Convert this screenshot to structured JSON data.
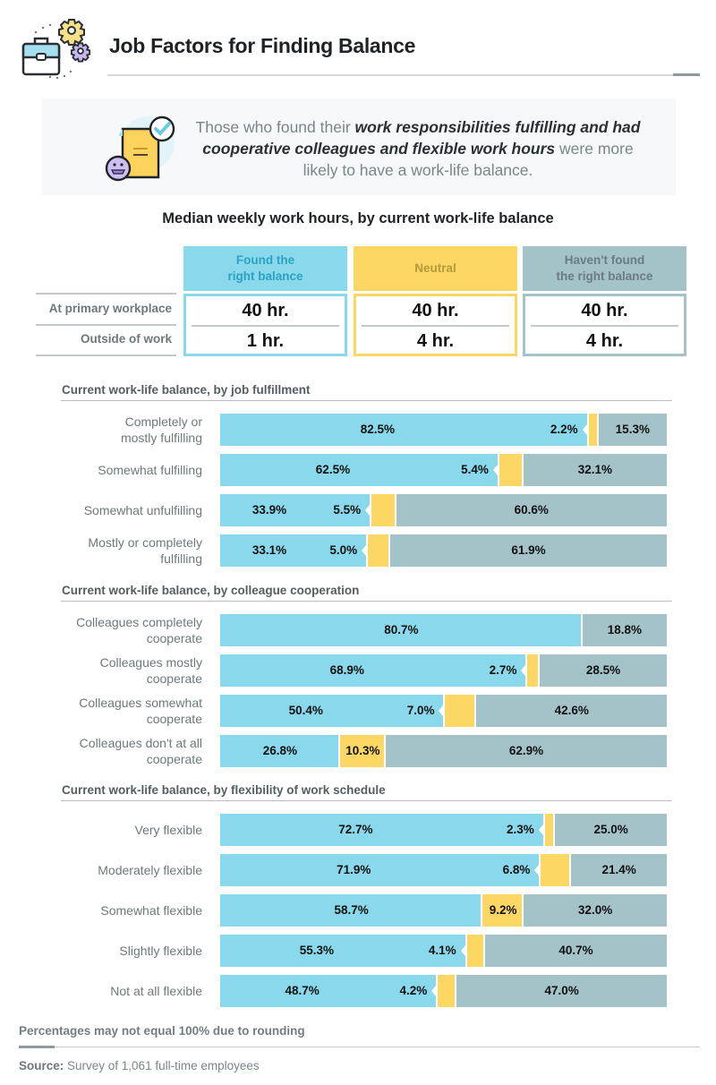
{
  "header": {
    "title": "Job Factors for Finding Balance",
    "icon": "briefcase-gears-icon"
  },
  "callout": {
    "icon": "document-check-face-icon",
    "text_pre": "Those who found their ",
    "text_bold": "work responsibilities fulfilling and had cooperative colleagues and flexible work hours",
    "text_post": " were more likely to have a work-life balance."
  },
  "colors": {
    "found": "#8ad8eb",
    "neutral": "#fcd763",
    "not_found": "#a3c3c9",
    "found_head_text": "#2ba3c2",
    "neutral_head_text": "#b49a3c",
    "not_found_head_text": "#6a7c80"
  },
  "hours_table": {
    "title": "Median weekly work hours, by current work-life balance",
    "columns": [
      {
        "label": "Found the right balance",
        "line1": "Found the",
        "line2": "right balance"
      },
      {
        "label": "Neutral",
        "line1": "Neutral",
        "line2": ""
      },
      {
        "label": "Haven't found the right balance",
        "line1": "Haven't found",
        "line2": "the right balance"
      }
    ],
    "rows": [
      {
        "label": "At primary workplace",
        "values": [
          "40 hr.",
          "40 hr.",
          "40 hr."
        ]
      },
      {
        "label": "Outside of work",
        "values": [
          "1 hr.",
          "4 hr.",
          "4 hr."
        ]
      }
    ]
  },
  "chart_data": {
    "type": "bar",
    "orientation": "horizontal",
    "stacked": true,
    "unit": "%",
    "series_names": [
      "Found the right balance",
      "Neutral",
      "Haven't found the right balance"
    ],
    "xlim": [
      0,
      100
    ],
    "legend": "table-header-top",
    "note": "Percentages may not equal 100% due to rounding",
    "groups": [
      {
        "title": "Current work-life balance, by job fulfillment",
        "rows": [
          {
            "label": [
              "Completely or",
              "mostly fulfilling"
            ],
            "values": [
              82.5,
              2.2,
              15.3
            ],
            "labels": [
              "82.5%",
              "2.2%",
              "15.3%"
            ]
          },
          {
            "label": [
              "Somewhat fulfilling"
            ],
            "values": [
              62.5,
              5.4,
              32.1
            ],
            "labels": [
              "62.5%",
              "5.4%",
              "32.1%"
            ]
          },
          {
            "label": [
              "Somewhat unfulfilling"
            ],
            "values": [
              33.9,
              5.5,
              60.6
            ],
            "labels": [
              "33.9%",
              "5.5%",
              "60.6%"
            ]
          },
          {
            "label": [
              "Mostly or completely",
              "fulfilling"
            ],
            "values": [
              33.1,
              5.0,
              61.9
            ],
            "labels": [
              "33.1%",
              "5.0%",
              "61.9%"
            ]
          }
        ]
      },
      {
        "title": "Current work-life balance, by colleague cooperation",
        "rows": [
          {
            "label": [
              "Colleagues completely",
              "cooperate"
            ],
            "values": [
              80.7,
              0,
              18.8
            ],
            "labels": [
              "80.7%",
              "",
              "18.8%"
            ]
          },
          {
            "label": [
              "Colleagues mostly",
              "cooperate"
            ],
            "values": [
              68.9,
              2.7,
              28.5
            ],
            "labels": [
              "68.9%",
              "2.7%",
              "28.5%"
            ]
          },
          {
            "label": [
              "Colleagues somewhat",
              "cooperate"
            ],
            "values": [
              50.4,
              7.0,
              42.6
            ],
            "labels": [
              "50.4%",
              "7.0%",
              "42.6%"
            ]
          },
          {
            "label": [
              "Colleagues don't at all",
              "cooperate"
            ],
            "values": [
              26.8,
              10.3,
              62.9
            ],
            "labels": [
              "26.8%",
              "10.3%",
              "62.9%"
            ]
          }
        ]
      },
      {
        "title": "Current work-life balance, by flexibility of work schedule",
        "rows": [
          {
            "label": [
              "Very flexible"
            ],
            "values": [
              72.7,
              2.3,
              25.0
            ],
            "labels": [
              "72.7%",
              "2.3%",
              "25.0%"
            ]
          },
          {
            "label": [
              "Moderately flexible"
            ],
            "values": [
              71.9,
              6.8,
              21.4
            ],
            "labels": [
              "71.9%",
              "6.8%",
              "21.4%"
            ]
          },
          {
            "label": [
              "Somewhat flexible"
            ],
            "values": [
              58.7,
              9.2,
              32.0
            ],
            "labels": [
              "58.7%",
              "9.2%",
              "32.0%"
            ]
          },
          {
            "label": [
              "Slightly flexible"
            ],
            "values": [
              55.3,
              4.1,
              40.7
            ],
            "labels": [
              "55.3%",
              "4.1%",
              "40.7%"
            ]
          },
          {
            "label": [
              "Not at all flexible"
            ],
            "values": [
              48.7,
              4.2,
              47.0
            ],
            "labels": [
              "48.7%",
              "4.2%",
              "47.0%"
            ]
          }
        ]
      }
    ]
  },
  "footer": {
    "note": "Percentages may not equal 100% due to rounding",
    "source_label": "Source:",
    "source_text": " Survey of 1,061 full-time employees"
  }
}
